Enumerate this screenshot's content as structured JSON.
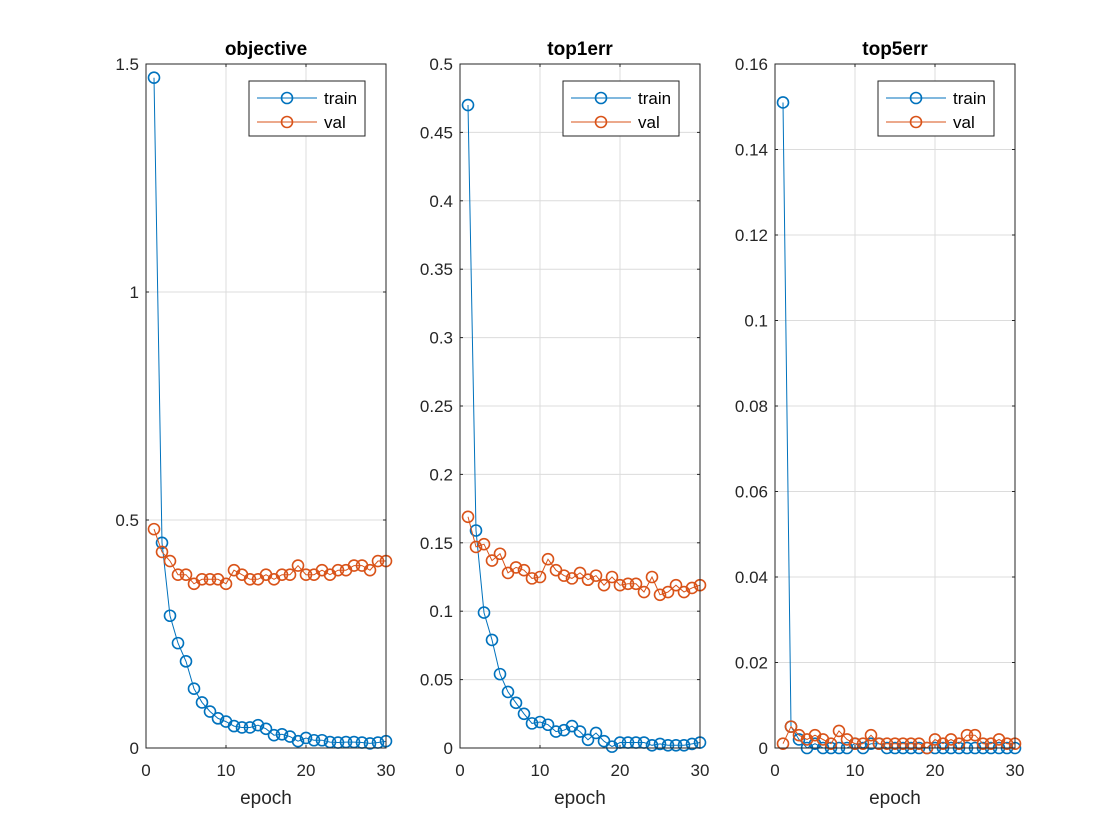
{
  "chart_data": [
    {
      "type": "line",
      "title": "objective",
      "xlabel": "epoch",
      "ylabel": "",
      "xlim": [
        0,
        30
      ],
      "ylim": [
        0,
        1.5
      ],
      "xticks": [
        "0",
        "10",
        "20",
        "30"
      ],
      "xtick_values": [
        0,
        10,
        20,
        30
      ],
      "yticks": [
        "0",
        "0.5",
        "1",
        "1.5"
      ],
      "ytick_values": [
        0,
        0.5,
        1,
        1.5
      ],
      "grid": true,
      "legend": "top-right",
      "x": [
        1,
        2,
        3,
        4,
        5,
        6,
        7,
        8,
        9,
        10,
        11,
        12,
        13,
        14,
        15,
        16,
        17,
        18,
        19,
        20,
        21,
        22,
        23,
        24,
        25,
        26,
        27,
        28,
        29,
        30
      ],
      "series": [
        {
          "name": "train",
          "color": "#0072BD",
          "values": [
            1.47,
            0.45,
            0.29,
            0.23,
            0.19,
            0.13,
            0.1,
            0.08,
            0.065,
            0.058,
            0.048,
            0.045,
            0.045,
            0.05,
            0.042,
            0.028,
            0.03,
            0.025,
            0.015,
            0.022,
            0.017,
            0.017,
            0.013,
            0.012,
            0.013,
            0.013,
            0.012,
            0.01,
            0.012,
            0.015
          ]
        },
        {
          "name": "val",
          "color": "#D95319",
          "values": [
            0.48,
            0.43,
            0.41,
            0.38,
            0.38,
            0.36,
            0.37,
            0.37,
            0.37,
            0.36,
            0.39,
            0.38,
            0.37,
            0.37,
            0.38,
            0.37,
            0.38,
            0.38,
            0.4,
            0.38,
            0.38,
            0.39,
            0.38,
            0.39,
            0.39,
            0.4,
            0.4,
            0.39,
            0.41,
            0.41
          ]
        }
      ]
    },
    {
      "type": "line",
      "title": "top1err",
      "xlabel": "epoch",
      "ylabel": "",
      "xlim": [
        0,
        30
      ],
      "ylim": [
        0,
        0.5
      ],
      "xticks": [
        "0",
        "10",
        "20",
        "30"
      ],
      "xtick_values": [
        0,
        10,
        20,
        30
      ],
      "yticks": [
        "0",
        "0.05",
        "0.1",
        "0.15",
        "0.2",
        "0.25",
        "0.3",
        "0.35",
        "0.4",
        "0.45",
        "0.5"
      ],
      "ytick_values": [
        0,
        0.05,
        0.1,
        0.15,
        0.2,
        0.25,
        0.3,
        0.35,
        0.4,
        0.45,
        0.5
      ],
      "grid": true,
      "legend": "top-right",
      "x": [
        1,
        2,
        3,
        4,
        5,
        6,
        7,
        8,
        9,
        10,
        11,
        12,
        13,
        14,
        15,
        16,
        17,
        18,
        19,
        20,
        21,
        22,
        23,
        24,
        25,
        26,
        27,
        28,
        29,
        30
      ],
      "series": [
        {
          "name": "train",
          "color": "#0072BD",
          "values": [
            0.47,
            0.159,
            0.099,
            0.079,
            0.054,
            0.041,
            0.033,
            0.025,
            0.018,
            0.019,
            0.017,
            0.012,
            0.013,
            0.016,
            0.012,
            0.006,
            0.011,
            0.005,
            0.001,
            0.004,
            0.004,
            0.004,
            0.004,
            0.002,
            0.003,
            0.002,
            0.002,
            0.002,
            0.003,
            0.004
          ]
        },
        {
          "name": "val",
          "color": "#D95319",
          "values": [
            0.169,
            0.147,
            0.149,
            0.137,
            0.142,
            0.128,
            0.132,
            0.13,
            0.124,
            0.125,
            0.138,
            0.13,
            0.126,
            0.124,
            0.128,
            0.123,
            0.126,
            0.119,
            0.125,
            0.119,
            0.12,
            0.12,
            0.114,
            0.125,
            0.112,
            0.114,
            0.119,
            0.114,
            0.117,
            0.119
          ]
        }
      ]
    },
    {
      "type": "line",
      "title": "top5err",
      "xlabel": "epoch",
      "ylabel": "",
      "xlim": [
        0,
        30
      ],
      "ylim": [
        0,
        0.16
      ],
      "xticks": [
        "0",
        "10",
        "20",
        "30"
      ],
      "xtick_values": [
        0,
        10,
        20,
        30
      ],
      "yticks": [
        "0",
        "0.02",
        "0.04",
        "0.06",
        "0.08",
        "0.1",
        "0.12",
        "0.14",
        "0.16"
      ],
      "ytick_values": [
        0,
        0.02,
        0.04,
        0.06,
        0.08,
        0.1,
        0.12,
        0.14,
        0.16
      ],
      "grid": true,
      "legend": "top-right",
      "x": [
        1,
        2,
        3,
        4,
        5,
        6,
        7,
        8,
        9,
        10,
        11,
        12,
        13,
        14,
        15,
        16,
        17,
        18,
        19,
        20,
        21,
        22,
        23,
        24,
        25,
        26,
        27,
        28,
        29,
        30
      ],
      "series": [
        {
          "name": "train",
          "color": "#0072BD",
          "values": [
            0.151,
            0.005,
            0.002,
            0,
            0.001,
            0,
            0,
            0,
            0,
            0.001,
            0,
            0.001,
            0.001,
            0,
            0,
            0,
            0,
            0,
            0,
            0,
            0,
            0,
            0,
            0,
            0,
            0,
            0,
            0,
            0,
            0
          ]
        },
        {
          "name": "val",
          "color": "#D95319",
          "values": [
            0.001,
            0.005,
            0.003,
            0.002,
            0.003,
            0.002,
            0.001,
            0.004,
            0.002,
            0.001,
            0.001,
            0.003,
            0.001,
            0.001,
            0.001,
            0.001,
            0.001,
            0.001,
            0,
            0.002,
            0.001,
            0.002,
            0.001,
            0.003,
            0.003,
            0.001,
            0.001,
            0.002,
            0.001,
            0.001
          ]
        }
      ]
    }
  ]
}
